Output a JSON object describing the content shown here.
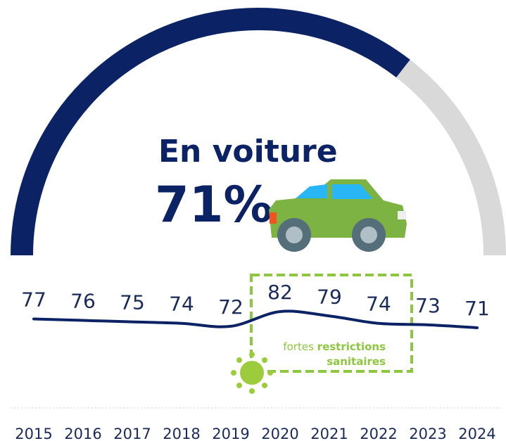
{
  "chart_data": {
    "type": "line",
    "title": "En voiture",
    "gauge": {
      "value": 71,
      "label": "71%",
      "lim": [
        0,
        100
      ],
      "color": "#0b2265",
      "track_color": "#d9d9d9"
    },
    "categories": [
      "2015",
      "2016",
      "2017",
      "2018",
      "2019",
      "2020",
      "2021",
      "2022",
      "2023",
      "2024"
    ],
    "values": [
      77,
      76,
      75,
      74,
      72,
      82,
      79,
      74,
      73,
      71
    ],
    "color": "#0b2265",
    "annotation": {
      "plain": "fortes",
      "bold_1": "restrictions",
      "bold_2": "sanitaires",
      "color": "#8dc63f"
    }
  }
}
